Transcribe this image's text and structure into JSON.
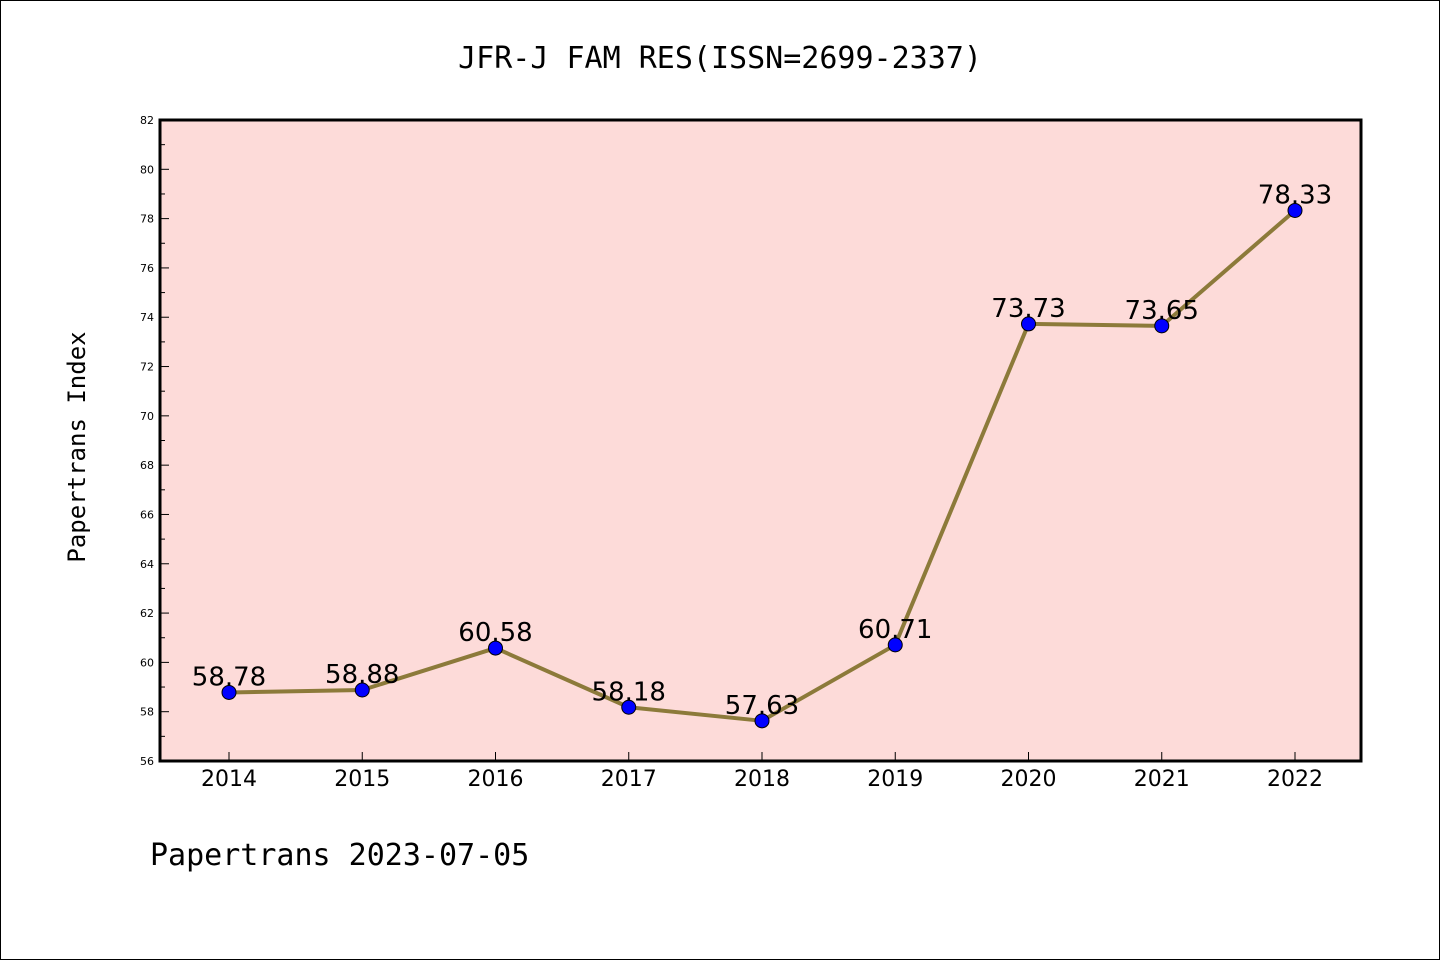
{
  "chart_data": {
    "type": "line",
    "title": "JFR-J FAM RES(ISSN=2699-2337)",
    "ylabel": "Papertrans Index",
    "xlabel": "",
    "footer": "Papertrans 2023-07-05",
    "categories": [
      "2014",
      "2015",
      "2016",
      "2017",
      "2018",
      "2019",
      "2020",
      "2021",
      "2022"
    ],
    "values": [
      58.78,
      58.88,
      60.58,
      58.18,
      57.63,
      60.71,
      73.73,
      73.65,
      78.33
    ],
    "data_labels": [
      "58.78",
      "58.88",
      "60.58",
      "58.18",
      "57.63",
      "60.71",
      "73.73",
      "73.65",
      "78.33"
    ],
    "ylim": [
      56,
      82
    ],
    "yticks": [
      "56",
      "58",
      "60",
      "62",
      "64",
      "66",
      "68",
      "70",
      "72",
      "74",
      "76",
      "78",
      "80",
      "82"
    ],
    "grid": false,
    "colors": {
      "plot_background": "#fddbd9",
      "line": "#8c7a3a",
      "marker": "#0000ff",
      "axes": "#000000"
    }
  }
}
